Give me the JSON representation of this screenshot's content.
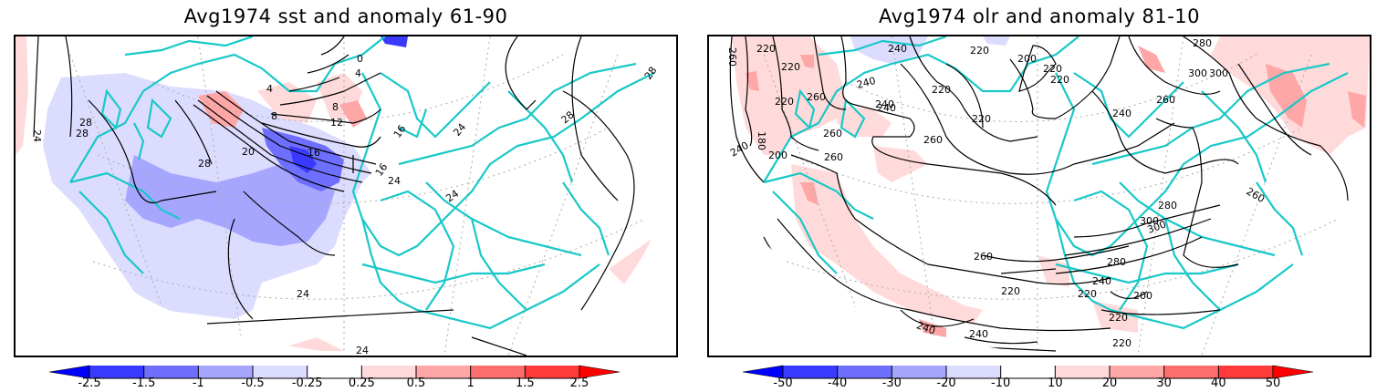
{
  "panels": [
    {
      "id": "sst",
      "title": "Avg1974 sst and anomaly 61-90",
      "colorbar": {
        "labels": [
          "-2.5",
          "-1.5",
          "-1",
          "-0.5",
          "-0.25",
          "0.25",
          "0.5",
          "1",
          "1.5",
          "2.5"
        ],
        "colors": [
          "#0000ff",
          "#3a3aff",
          "#6e6eff",
          "#a6a6ff",
          "#dcdcff",
          "#ffffff",
          "#ffdada",
          "#ffa6a6",
          "#ff6e6e",
          "#ff3a3a",
          "#ff0000"
        ]
      },
      "contour_labels": [
        "24",
        "28",
        "28",
        "28",
        "20",
        "16",
        "12",
        "8",
        "8",
        "4",
        "4",
        "0",
        "24",
        "24",
        "24",
        "28",
        "28",
        "24",
        "16",
        "16",
        "24"
      ]
    },
    {
      "id": "olr",
      "title": "Avg1974 olr and anomaly 81-10",
      "colorbar": {
        "labels": [
          "-50",
          "-40",
          "-30",
          "-20",
          "-10",
          "10",
          "20",
          "30",
          "40",
          "50"
        ],
        "colors": [
          "#0000ff",
          "#3a3aff",
          "#6e6eff",
          "#a6a6ff",
          "#dcdcff",
          "#ffffff",
          "#ffdada",
          "#ffa6a6",
          "#ff6e6e",
          "#ff3a3a",
          "#ff0000"
        ]
      },
      "contour_labels": [
        "260",
        "220",
        "220",
        "220",
        "180",
        "200",
        "240",
        "260",
        "260",
        "260",
        "240",
        "240",
        "240",
        "220",
        "220",
        "200",
        "220",
        "220",
        "220",
        "240",
        "240",
        "260",
        "280",
        "300",
        "300",
        "260",
        "280",
        "300",
        "300",
        "280",
        "240",
        "220",
        "220",
        "200",
        "220",
        "260",
        "240",
        "260",
        "240",
        "280",
        "260",
        "220",
        "240"
      ]
    }
  ],
  "colors": {
    "coastline": "#19c8c8",
    "contour": "#000000",
    "gridline": "#aaaaaa"
  }
}
